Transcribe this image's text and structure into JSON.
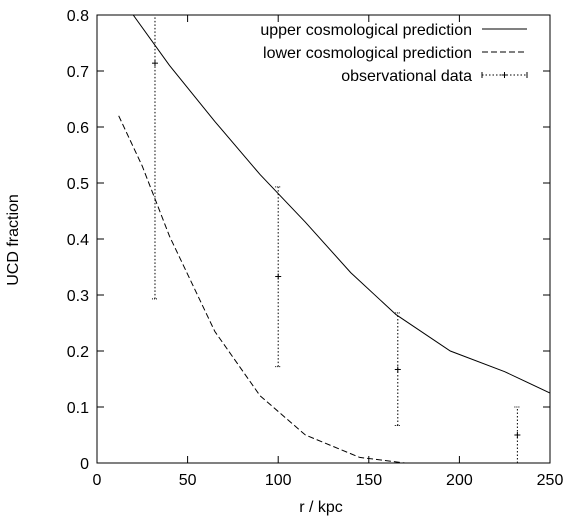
{
  "chart_data": {
    "type": "line",
    "xlabel": "r / kpc",
    "ylabel": "UCD fraction",
    "xlim": [
      0,
      250
    ],
    "ylim": [
      0,
      0.8
    ],
    "xticks": [
      "0",
      "50",
      "100",
      "150",
      "200",
      "250"
    ],
    "yticks": [
      "0",
      "0.1",
      "0.2",
      "0.3",
      "0.4",
      "0.5",
      "0.6",
      "0.7",
      "0.8"
    ],
    "legend_position": "top-right",
    "grid": false,
    "series": [
      {
        "name": "upper cosmological prediction",
        "style": "solid",
        "points": [
          [
            20,
            0.8
          ],
          [
            40,
            0.71
          ],
          [
            65,
            0.61
          ],
          [
            90,
            0.515
          ],
          [
            115,
            0.43
          ],
          [
            140,
            0.34
          ],
          [
            165,
            0.265
          ],
          [
            195,
            0.2
          ],
          [
            225,
            0.163
          ],
          [
            250,
            0.125
          ]
        ]
      },
      {
        "name": "lower cosmological prediction",
        "style": "dashed",
        "points": [
          [
            12,
            0.62
          ],
          [
            25,
            0.53
          ],
          [
            40,
            0.405
          ],
          [
            65,
            0.235
          ],
          [
            90,
            0.12
          ],
          [
            115,
            0.05
          ],
          [
            145,
            0.01
          ],
          [
            170,
            0.0
          ],
          [
            200,
            0.0
          ],
          [
            250,
            0.0
          ]
        ]
      },
      {
        "name": "observational data",
        "style": "errorbar",
        "points": [
          {
            "x": 32,
            "y": 0.714,
            "ylow": 0.293,
            "yhigh": 0.8
          },
          {
            "x": 100,
            "y": 0.333,
            "ylow": 0.172,
            "yhigh": 0.493
          },
          {
            "x": 166,
            "y": 0.167,
            "ylow": 0.067,
            "yhigh": 0.268
          },
          {
            "x": 232,
            "y": 0.05,
            "ylow": 0.0,
            "yhigh": 0.1
          }
        ]
      }
    ]
  }
}
